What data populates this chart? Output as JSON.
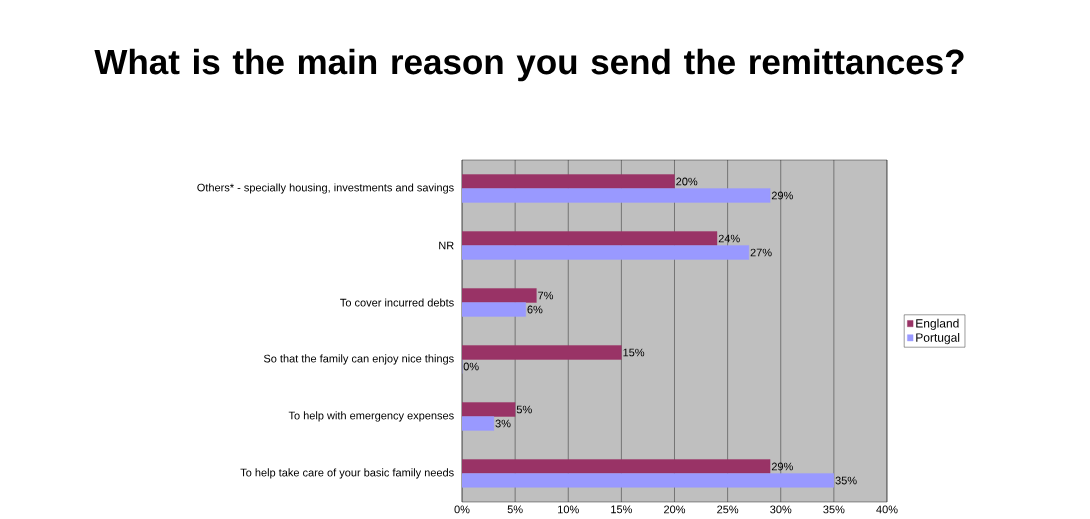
{
  "chart_data": {
    "type": "bar",
    "orientation": "horizontal",
    "title": "What is the main reason you send the remittances?",
    "categories": [
      "Others* - specially housing, investments and savings",
      "NR",
      "To cover incurred debts",
      "So that the family can enjoy nice things",
      "To help with emergency expenses",
      "To help take care of your basic family needs"
    ],
    "series": [
      {
        "name": "England",
        "color": "#993366",
        "values": [
          20,
          24,
          7,
          15,
          5,
          29
        ],
        "value_labels": [
          "20%",
          "24%",
          "7%",
          "15%",
          "5%",
          "29%"
        ]
      },
      {
        "name": "Portugal",
        "color": "#9999ff",
        "values": [
          29,
          27,
          6,
          0,
          3,
          35
        ],
        "value_labels": [
          "29%",
          "27%",
          "6%",
          "0%",
          "3%",
          "35%"
        ]
      }
    ],
    "xlim": [
      0,
      40
    ],
    "xticks": [
      {
        "value": 0,
        "label": "0%"
      },
      {
        "value": 5,
        "label": "5%"
      },
      {
        "value": 10,
        "label": "10%"
      },
      {
        "value": 15,
        "label": "15%"
      },
      {
        "value": 20,
        "label": "20%"
      },
      {
        "value": 25,
        "label": "25%"
      },
      {
        "value": 30,
        "label": "30%"
      },
      {
        "value": 35,
        "label": "35%"
      },
      {
        "value": 40,
        "label": "40%"
      }
    ],
    "grid": "x",
    "legend": "right"
  }
}
